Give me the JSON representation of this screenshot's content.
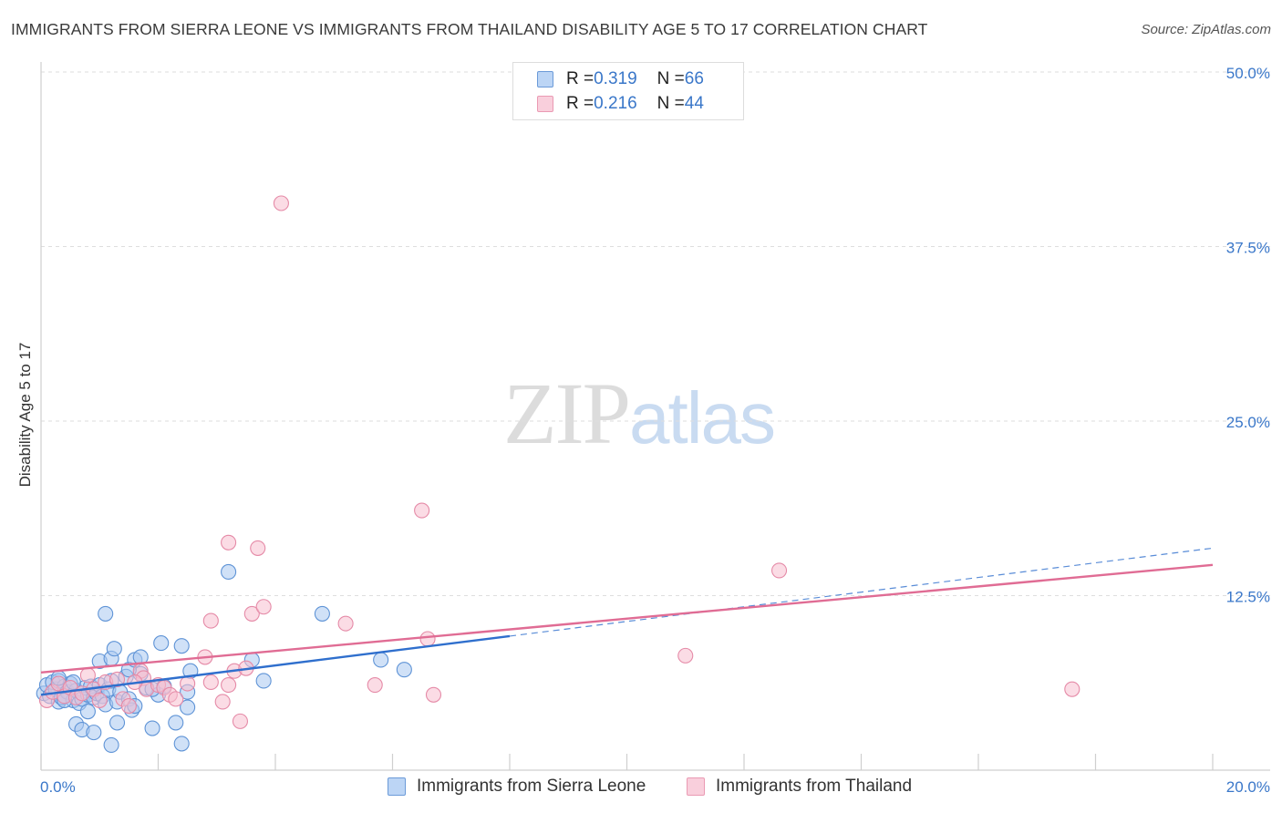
{
  "header": {
    "title": "IMMIGRANTS FROM SIERRA LEONE VS IMMIGRANTS FROM THAILAND DISABILITY AGE 5 TO 17 CORRELATION CHART",
    "source": "Source: ZipAtlas.com"
  },
  "watermark": {
    "zip": "ZIP",
    "atlas": "atlas"
  },
  "legend_top": {
    "rows": [
      {
        "r_label": "R = ",
        "r_value": "0.319",
        "n_label": "N = ",
        "n_value": "66"
      },
      {
        "r_label": "R = ",
        "r_value": "0.216",
        "n_label": "N = ",
        "n_value": "44"
      }
    ]
  },
  "chart_data": {
    "type": "scatter",
    "title": "IMMIGRANTS FROM SIERRA LEONE VS IMMIGRANTS FROM THAILAND DISABILITY AGE 5 TO 17 CORRELATION CHART",
    "ylabel": "Disability Age 5 to 17",
    "xlabel": "",
    "xlim": [
      0,
      20
    ],
    "ylim": [
      0,
      50
    ],
    "x_tick_labels": [
      "0.0%",
      "20.0%"
    ],
    "y_tick_labels": [
      "12.5%",
      "25.0%",
      "37.5%",
      "50.0%"
    ],
    "y_ticks": [
      12.5,
      25.0,
      37.5,
      50.0
    ],
    "grid": true,
    "legend_position": "bottom",
    "series": [
      {
        "name": "Immigrants from Sierra Leone",
        "color": "#a9c8f0",
        "stroke": "#5e93d6",
        "trend_color": "#2f6fcd",
        "r": 0.319,
        "n": 66,
        "trend": {
          "x": [
            0,
            8
          ],
          "y": [
            5.4,
            9.6
          ]
        },
        "trend_extension": {
          "x": [
            8,
            20
          ],
          "y": [
            9.6,
            15.9
          ]
        },
        "points": [
          [
            0.05,
            5.5
          ],
          [
            0.1,
            6.1
          ],
          [
            0.15,
            5.3
          ],
          [
            0.2,
            6.3
          ],
          [
            0.25,
            5.8
          ],
          [
            0.3,
            6.4
          ],
          [
            0.3,
            4.9
          ],
          [
            0.35,
            5.2
          ],
          [
            0.4,
            6.0
          ],
          [
            0.45,
            5.6
          ],
          [
            0.5,
            6.2
          ],
          [
            0.55,
            5.0
          ],
          [
            0.6,
            5.7
          ],
          [
            0.65,
            4.8
          ],
          [
            0.7,
            5.1
          ],
          [
            0.75,
            5.9
          ],
          [
            0.8,
            5.4
          ],
          [
            0.85,
            6.0
          ],
          [
            0.9,
            5.2
          ],
          [
            0.95,
            5.5
          ],
          [
            1.0,
            6.1
          ],
          [
            1.05,
            5.3
          ],
          [
            1.1,
            4.7
          ],
          [
            1.15,
            5.8
          ],
          [
            1.2,
            6.4
          ],
          [
            1.3,
            4.9
          ],
          [
            1.35,
            5.6
          ],
          [
            1.45,
            6.7
          ],
          [
            1.5,
            5.1
          ],
          [
            1.55,
            4.3
          ],
          [
            1.6,
            4.6
          ],
          [
            1.7,
            6.9
          ],
          [
            1.8,
            5.9
          ],
          [
            2.0,
            5.4
          ],
          [
            2.1,
            6.0
          ],
          [
            0.6,
            3.3
          ],
          [
            0.7,
            2.9
          ],
          [
            0.9,
            2.7
          ],
          [
            1.2,
            1.8
          ],
          [
            1.3,
            3.4
          ],
          [
            1.9,
            3.0
          ],
          [
            2.3,
            3.4
          ],
          [
            2.5,
            4.5
          ],
          [
            0.8,
            4.2
          ],
          [
            1.5,
            7.2
          ],
          [
            1.0,
            7.8
          ],
          [
            1.2,
            8.0
          ],
          [
            1.25,
            8.7
          ],
          [
            1.6,
            7.9
          ],
          [
            1.7,
            8.1
          ],
          [
            1.1,
            11.2
          ],
          [
            2.05,
            9.1
          ],
          [
            2.4,
            8.9
          ],
          [
            2.55,
            7.1
          ],
          [
            2.4,
            1.9
          ],
          [
            3.2,
            14.2
          ],
          [
            3.6,
            7.9
          ],
          [
            3.8,
            6.4
          ],
          [
            4.8,
            11.2
          ],
          [
            5.8,
            7.9
          ],
          [
            6.2,
            7.2
          ],
          [
            2.5,
            5.6
          ],
          [
            0.3,
            6.6
          ],
          [
            0.4,
            5.0
          ],
          [
            0.55,
            6.3
          ],
          [
            1.9,
            5.8
          ]
        ]
      },
      {
        "name": "Immigrants from Thailand",
        "color": "#f7c0d0",
        "stroke": "#e58aa7",
        "trend_color": "#e06c94",
        "r": 0.216,
        "n": 44,
        "trend": {
          "x": [
            0,
            20
          ],
          "y": [
            7.0,
            14.7
          ]
        },
        "points": [
          [
            0.1,
            5.0
          ],
          [
            0.2,
            5.6
          ],
          [
            0.3,
            6.2
          ],
          [
            0.4,
            5.3
          ],
          [
            0.5,
            5.9
          ],
          [
            0.6,
            5.2
          ],
          [
            0.7,
            5.5
          ],
          [
            0.9,
            5.8
          ],
          [
            1.0,
            5.0
          ],
          [
            1.1,
            6.3
          ],
          [
            1.3,
            6.5
          ],
          [
            1.4,
            5.1
          ],
          [
            1.5,
            4.6
          ],
          [
            1.7,
            7.1
          ],
          [
            1.75,
            6.6
          ],
          [
            1.8,
            5.8
          ],
          [
            2.0,
            6.1
          ],
          [
            2.1,
            5.9
          ],
          [
            2.2,
            5.4
          ],
          [
            2.3,
            5.1
          ],
          [
            2.5,
            6.2
          ],
          [
            2.8,
            8.1
          ],
          [
            2.9,
            6.3
          ],
          [
            3.1,
            4.9
          ],
          [
            3.2,
            6.1
          ],
          [
            3.3,
            7.1
          ],
          [
            3.5,
            7.3
          ],
          [
            3.4,
            3.5
          ],
          [
            2.9,
            10.7
          ],
          [
            3.6,
            11.2
          ],
          [
            3.8,
            11.7
          ],
          [
            3.2,
            16.3
          ],
          [
            3.7,
            15.9
          ],
          [
            4.1,
            40.6
          ],
          [
            5.2,
            10.5
          ],
          [
            5.7,
            6.1
          ],
          [
            6.5,
            18.6
          ],
          [
            6.6,
            9.4
          ],
          [
            6.7,
            5.4
          ],
          [
            11.0,
            8.2
          ],
          [
            12.6,
            14.3
          ],
          [
            17.6,
            5.8
          ],
          [
            0.8,
            6.8
          ],
          [
            1.6,
            6.3
          ]
        ]
      }
    ]
  }
}
